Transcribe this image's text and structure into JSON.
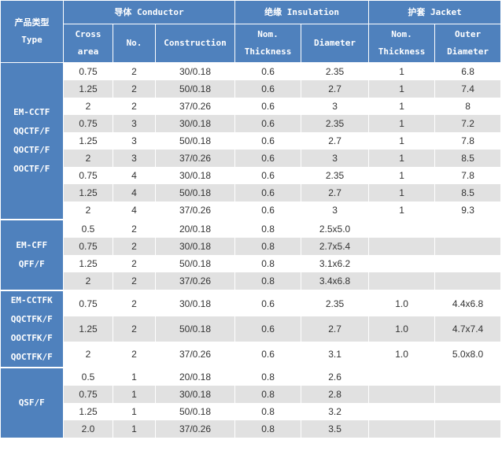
{
  "header": {
    "type_cn": "产品类型",
    "type_en": "Type",
    "conductor": "导体 Conductor",
    "insulation": "绝缘 Insulation",
    "jacket": "护套 Jacket",
    "cross_area": [
      "Cross",
      "area"
    ],
    "no": "No.",
    "construction": "Construction",
    "ins_thickness": [
      "Nom.",
      "Thickness"
    ],
    "ins_diameter": "Diameter",
    "jacket_thickness": [
      "Nom.",
      "Thickness"
    ],
    "outer_diameter": [
      "Outer",
      "Diameter"
    ]
  },
  "groups": [
    {
      "types": [
        "EM-CCTF",
        "QQCTF/F",
        "QOCTF/F",
        "OOCTF/F"
      ],
      "rows": [
        [
          "0.75",
          "2",
          "30/0.18",
          "0.6",
          "2.35",
          "1",
          "6.8"
        ],
        [
          "1.25",
          "2",
          "50/0.18",
          "0.6",
          "2.7",
          "1",
          "7.4"
        ],
        [
          "2",
          "2",
          "37/0.26",
          "0.6",
          "3",
          "1",
          "8"
        ],
        [
          "0.75",
          "3",
          "30/0.18",
          "0.6",
          "2.35",
          "1",
          "7.2"
        ],
        [
          "1.25",
          "3",
          "50/0.18",
          "0.6",
          "2.7",
          "1",
          "7.8"
        ],
        [
          "2",
          "3",
          "37/0.26",
          "0.6",
          "3",
          "1",
          "8.5"
        ],
        [
          "0.75",
          "4",
          "30/0.18",
          "0.6",
          "2.35",
          "1",
          "7.8"
        ],
        [
          "1.25",
          "4",
          "50/0.18",
          "0.6",
          "2.7",
          "1",
          "8.5"
        ],
        [
          "2",
          "4",
          "37/0.26",
          "0.6",
          "3",
          "1",
          "9.3"
        ]
      ]
    },
    {
      "types": [
        "EM-CFF",
        "QFF/F"
      ],
      "rows": [
        [
          "0.5",
          "2",
          "20/0.18",
          "0.8",
          "2.5x5.0",
          "",
          ""
        ],
        [
          "0.75",
          "2",
          "30/0.18",
          "0.8",
          "2.7x5.4",
          "",
          ""
        ],
        [
          "1.25",
          "2",
          "50/0.18",
          "0.8",
          "3.1x6.2",
          "",
          ""
        ],
        [
          "2",
          "2",
          "37/0.26",
          "0.8",
          "3.4x6.8",
          "",
          ""
        ]
      ]
    },
    {
      "types": [
        "EM-CCTFK",
        "QQCTFK/F",
        "OOCTFK/F",
        "QOCTFK/F"
      ],
      "rows": [
        [
          "0.75",
          "2",
          "30/0.18",
          "0.6",
          "2.35",
          "1.0",
          "4.4x6.8"
        ],
        [
          "1.25",
          "2",
          "50/0.18",
          "0.6",
          "2.7",
          "1.0",
          "4.7x7.4"
        ],
        [
          "2",
          "2",
          "37/0.26",
          "0.6",
          "3.1",
          "1.0",
          "5.0x8.0"
        ]
      ]
    },
    {
      "types": [
        "QSF/F"
      ],
      "rows": [
        [
          "0.5",
          "1",
          "20/0.18",
          "0.8",
          "2.6",
          "",
          ""
        ],
        [
          "0.75",
          "1",
          "30/0.18",
          "0.8",
          "2.8",
          "",
          ""
        ],
        [
          "1.25",
          "1",
          "50/0.18",
          "0.8",
          "3.2",
          "",
          ""
        ],
        [
          "2.0",
          "1",
          "37/0.26",
          "0.8",
          "3.5",
          "",
          ""
        ]
      ]
    }
  ]
}
